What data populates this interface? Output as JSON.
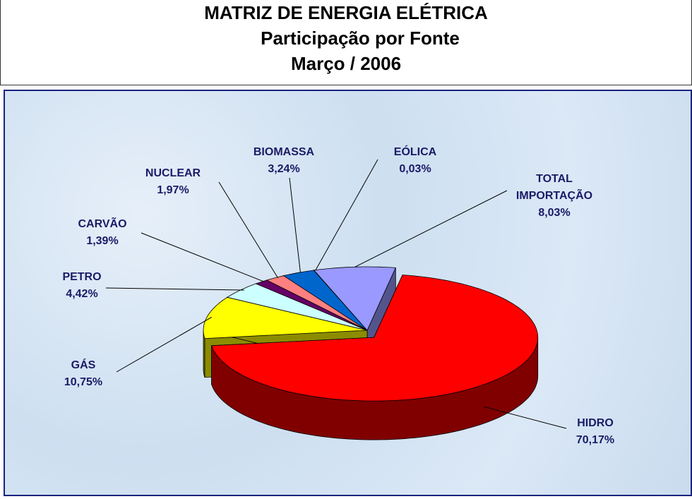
{
  "chart_data": {
    "type": "pie3d",
    "title": "MATRIZ DE ENERGIA ELÉTRICA",
    "subtitle": "Participação por Fonte",
    "date": "Março / 2006",
    "categories": [
      "HIDRO",
      "GÁS",
      "PETRO",
      "CARVÃO",
      "NUCLEAR",
      "BIOMASSA",
      "EÓLICA",
      "TOTAL IMPORTAÇÃO"
    ],
    "values": [
      70.17,
      10.75,
      4.42,
      1.39,
      1.97,
      3.24,
      0.03,
      8.03
    ],
    "value_labels": [
      "70,17%",
      "10,75%",
      "4,42%",
      "1,39%",
      "1,97%",
      "3,24%",
      "0,03%",
      "8,03%"
    ],
    "colors": [
      "#ff0000",
      "#ffff00",
      "#ccffff",
      "#660066",
      "#ff8080",
      "#0066cc",
      "#000080",
      "#9999ff"
    ]
  }
}
